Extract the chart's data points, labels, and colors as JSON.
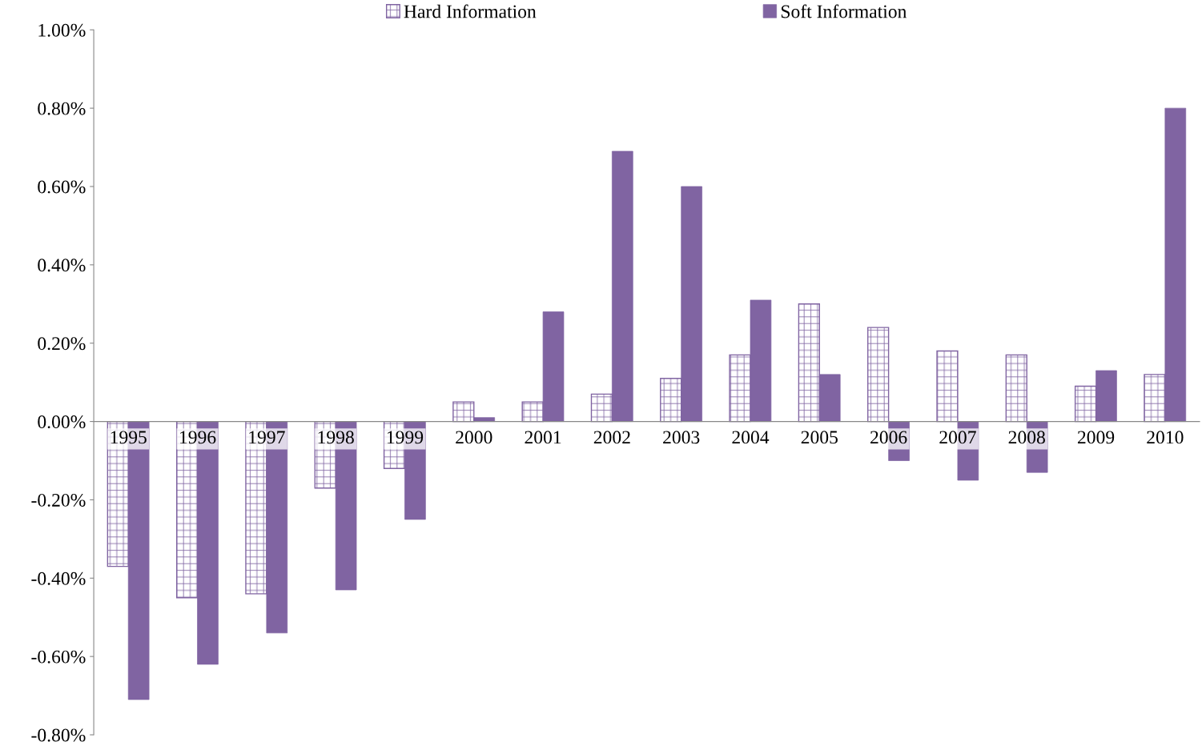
{
  "chart_data": {
    "type": "bar",
    "categories": [
      "1995",
      "1996",
      "1997",
      "1998",
      "1999",
      "2000",
      "2001",
      "2002",
      "2003",
      "2004",
      "2005",
      "2006",
      "2007",
      "2008",
      "2009",
      "2010"
    ],
    "series": [
      {
        "name": "Hard Information",
        "color": "#8064a2",
        "values": [
          -0.37,
          -0.45,
          -0.44,
          -0.17,
          -0.12,
          0.05,
          0.05,
          0.07,
          0.11,
          0.17,
          0.3,
          0.24,
          0.18,
          0.17,
          0.09,
          0.12
        ]
      },
      {
        "name": "Soft Information",
        "color": "#8064a2",
        "values": [
          -0.71,
          -0.62,
          -0.54,
          -0.43,
          -0.25,
          0.01,
          0.28,
          0.69,
          0.6,
          0.31,
          0.12,
          -0.1,
          -0.15,
          -0.13,
          0.13,
          0.8
        ]
      }
    ],
    "ylim": [
      -0.8,
      1.0
    ],
    "yticks": [
      {
        "value": -0.8,
        "label": "-0.80%"
      },
      {
        "value": -0.6,
        "label": "-0.60%"
      },
      {
        "value": -0.4,
        "label": "-0.40%"
      },
      {
        "value": -0.2,
        "label": "-0.20%"
      },
      {
        "value": 0,
        "label": "0.00%"
      },
      {
        "value": 0.2,
        "label": "0.20%"
      },
      {
        "value": 0.4,
        "label": "0.40%"
      },
      {
        "value": 0.6,
        "label": "0.60%"
      },
      {
        "value": 0.8,
        "label": "0.80%"
      },
      {
        "value": 1.0,
        "label": "1.00%"
      }
    ],
    "grid": false,
    "legend": "top"
  }
}
